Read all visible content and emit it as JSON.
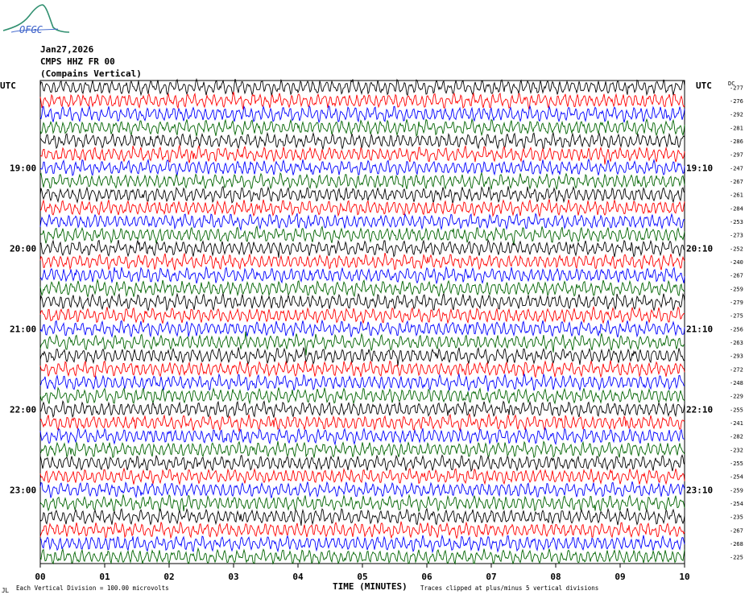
{
  "header": {
    "date": "Jan27,2026",
    "station": "CMPS HHZ FR 00",
    "location": "(Compains Vertical)",
    "logo_text": "OFGC"
  },
  "axes": {
    "left_label": "UTC",
    "right_label": "UTC",
    "dc_label": "DC",
    "xlabel": "TIME (MINUTES)",
    "footer_left": "Each Vertical Division =  100.00 microvolts",
    "footer_right": "Traces clipped at plus/minus 5 vertical divisions",
    "corner_mark": "JL"
  },
  "colors": {
    "trace_cycle": [
      "#000000",
      "#ff0000",
      "#0000ff",
      "#006400"
    ]
  },
  "chart_data": {
    "type": "line",
    "title": "",
    "xlabel": "TIME (MINUTES)",
    "ylabel": "",
    "x_ticks": [
      "00",
      "01",
      "02",
      "03",
      "04",
      "05",
      "06",
      "07",
      "08",
      "09",
      "10"
    ],
    "xlim": [
      0,
      10
    ],
    "row_count": 36,
    "row_minutes": 10,
    "left_time_labels": [
      {
        "row": 6,
        "label": "19:00"
      },
      {
        "row": 12,
        "label": "20:00"
      },
      {
        "row": 18,
        "label": "21:00"
      },
      {
        "row": 24,
        "label": "22:00"
      },
      {
        "row": 30,
        "label": "23:00"
      }
    ],
    "right_time_labels": [
      {
        "row": 6,
        "label": "19:10"
      },
      {
        "row": 12,
        "label": "20:10"
      },
      {
        "row": 18,
        "label": "21:10"
      },
      {
        "row": 24,
        "label": "22:10"
      },
      {
        "row": 30,
        "label": "23:10"
      }
    ],
    "dc_offsets": [
      "-277",
      "-276",
      "-292",
      "-281",
      "-286",
      "-297",
      "-247",
      "-267",
      "-261",
      "-284",
      "-253",
      "-273",
      "-252",
      "-240",
      "-267",
      "-259",
      "-279",
      "-275",
      "-256",
      "-263",
      "-293",
      "-272",
      "-248",
      "-229",
      "-255",
      "-241",
      "-282",
      "-232",
      "-255",
      "-254",
      "-259",
      "-254",
      "-235",
      "-267",
      "-268",
      "-225"
    ]
  }
}
